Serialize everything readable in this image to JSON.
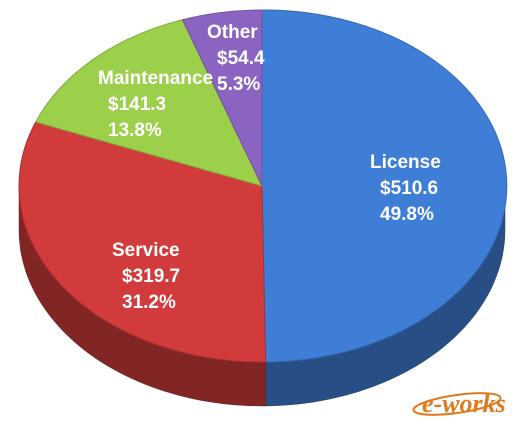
{
  "chart_data": {
    "type": "pie",
    "style": "3d",
    "unit": "$",
    "slices": [
      {
        "name": "License",
        "value": 510.6,
        "value_label": "$510.6",
        "percent": 49.8,
        "percent_label": "49.8%",
        "color": "#3f7ed6"
      },
      {
        "name": "Service",
        "value": 319.7,
        "value_label": "$319.7",
        "percent": 31.2,
        "percent_label": "31.2%",
        "color": "#d23b3b"
      },
      {
        "name": "Maintenance",
        "value": 141.3,
        "value_label": "$141.3",
        "percent": 13.8,
        "percent_label": "13.8%",
        "color": "#9ccf4a"
      },
      {
        "name": "Other",
        "value": 54.4,
        "value_label": "$54.4",
        "percent": 5.3,
        "percent_label": "5.3%",
        "color": "#8a64c0"
      }
    ]
  },
  "watermark": {
    "text": "e-works",
    "color": "#e07a1f"
  }
}
